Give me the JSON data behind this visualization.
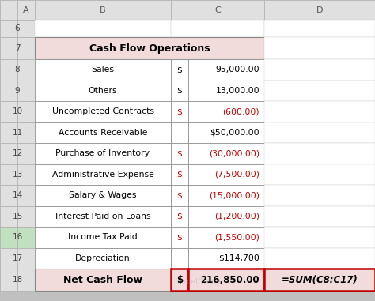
{
  "title": "Cash Flow Operations",
  "rows": [
    {
      "label": "Sales",
      "dollar": "$",
      "value": "95,000.00",
      "color": "black"
    },
    {
      "label": "Others",
      "dollar": "$",
      "value": "13,000.00",
      "color": "black"
    },
    {
      "label": "Uncompleted Contracts",
      "dollar": "$",
      "value": "(600.00)",
      "color": "#c00000"
    },
    {
      "label": "Accounts Receivable",
      "dollar": "",
      "value": "$50,000.00",
      "color": "black"
    },
    {
      "label": "Purchase of Inventory",
      "dollar": "$",
      "value": "(30,000.00)",
      "color": "#c00000"
    },
    {
      "label": "Administrative Expense",
      "dollar": "$",
      "value": "(7,500.00)",
      "color": "#c00000"
    },
    {
      "label": "Salary & Wages",
      "dollar": "$",
      "value": "(15,000.00)",
      "color": "#c00000"
    },
    {
      "label": "Interest Paid on Loans",
      "dollar": "$",
      "value": "(1,200.00)",
      "color": "#c00000"
    },
    {
      "label": "Income Tax Paid",
      "dollar": "$",
      "value": "(1,550.00)",
      "color": "#c00000"
    },
    {
      "label": "Depreciation",
      "dollar": "",
      "value": "$114,700",
      "color": "black"
    }
  ],
  "footer_label": "Net Cash Flow",
  "footer_dollar": "$",
  "footer_value": "216,850.00",
  "footer_formula": "=SUM(C8:C17)",
  "header_bg": "#f2dcdb",
  "footer_bg": "#f2dcdb",
  "cell_bg": "#ffffff",
  "col_header_bg": "#e0e0e0",
  "row_num_bg": "#e0e0e0",
  "row_num_bg_16": "#c0e0c0",
  "excel_bg": "#c0c0c0",
  "formula_border_color": "#c00000",
  "col_labels": [
    "A",
    "B",
    "C",
    "D"
  ],
  "row_nums": [
    6,
    7,
    8,
    9,
    10,
    11,
    12,
    13,
    14,
    15,
    16,
    17,
    18
  ]
}
